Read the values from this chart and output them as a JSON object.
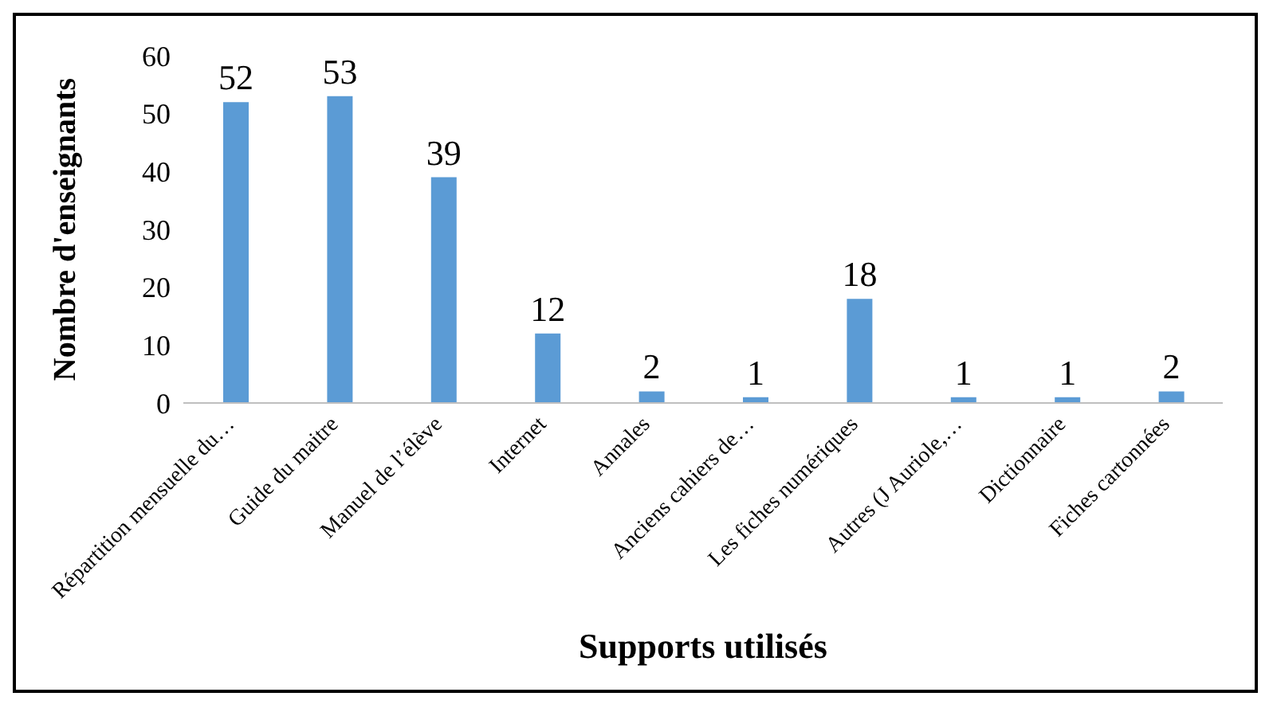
{
  "chart_data": {
    "type": "bar",
    "xlabel": "Supports utilisés",
    "ylabel": "Nombre d'enseignants",
    "categories": [
      "Répartition mensuelle du…",
      "Guide du maitre",
      "Manuel de l’élève",
      "Internet",
      "Annales",
      "Anciens cahiers de…",
      "Les fiches numériques",
      "Autres (J Auriole,…",
      "Dictionnaire",
      "Fiches cartonnées"
    ],
    "values": [
      52,
      53,
      39,
      12,
      2,
      1,
      18,
      1,
      1,
      2
    ],
    "color": "#5b9bd5",
    "ylim": [
      0,
      60
    ],
    "yticks": [
      0,
      10,
      20,
      30,
      40,
      50,
      60
    ],
    "grid": false,
    "legend": false,
    "data_labels": true
  }
}
